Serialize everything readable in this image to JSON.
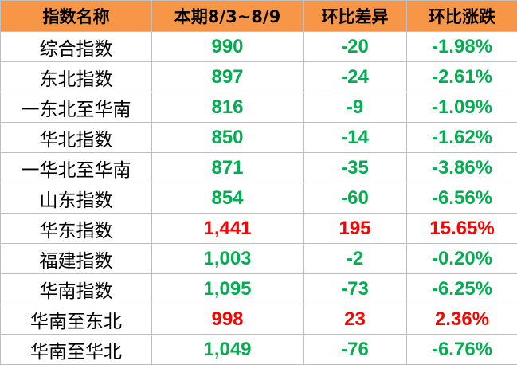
{
  "headers": [
    "指数名称",
    "本期8/3~8/9",
    "环比差异",
    "环比涨跌"
  ],
  "colors": {
    "header_bg": "#f79646",
    "down": "#00b050",
    "up": "#ff0000"
  },
  "rows": [
    {
      "name": "综合指数",
      "value": "990",
      "diff": "-20",
      "pct": "-1.98%",
      "trend": "down"
    },
    {
      "name": "东北指数",
      "value": "897",
      "diff": "-24",
      "pct": "-2.61%",
      "trend": "down"
    },
    {
      "name": "一东北至华南",
      "value": "816",
      "diff": "-9",
      "pct": "-1.09%",
      "trend": "down"
    },
    {
      "name": "华北指数",
      "value": "850",
      "diff": "-14",
      "pct": "-1.62%",
      "trend": "down"
    },
    {
      "name": "一华北至华南",
      "value": "871",
      "diff": "-35",
      "pct": "-3.86%",
      "trend": "down"
    },
    {
      "name": "山东指数",
      "value": "854",
      "diff": "-60",
      "pct": "-6.56%",
      "trend": "down"
    },
    {
      "name": "华东指数",
      "value": "1,441",
      "diff": "195",
      "pct": "15.65%",
      "trend": "up"
    },
    {
      "name": "福建指数",
      "value": "1,003",
      "diff": "-2",
      "pct": "-0.20%",
      "trend": "down"
    },
    {
      "name": "华南指数",
      "value": "1,095",
      "diff": "-73",
      "pct": "-6.25%",
      "trend": "down"
    },
    {
      "name": "华南至东北",
      "value": "998",
      "diff": "23",
      "pct": "2.36%",
      "trend": "up"
    },
    {
      "name": "华南至华北",
      "value": "1,049",
      "diff": "-76",
      "pct": "-6.76%",
      "trend": "down"
    }
  ]
}
